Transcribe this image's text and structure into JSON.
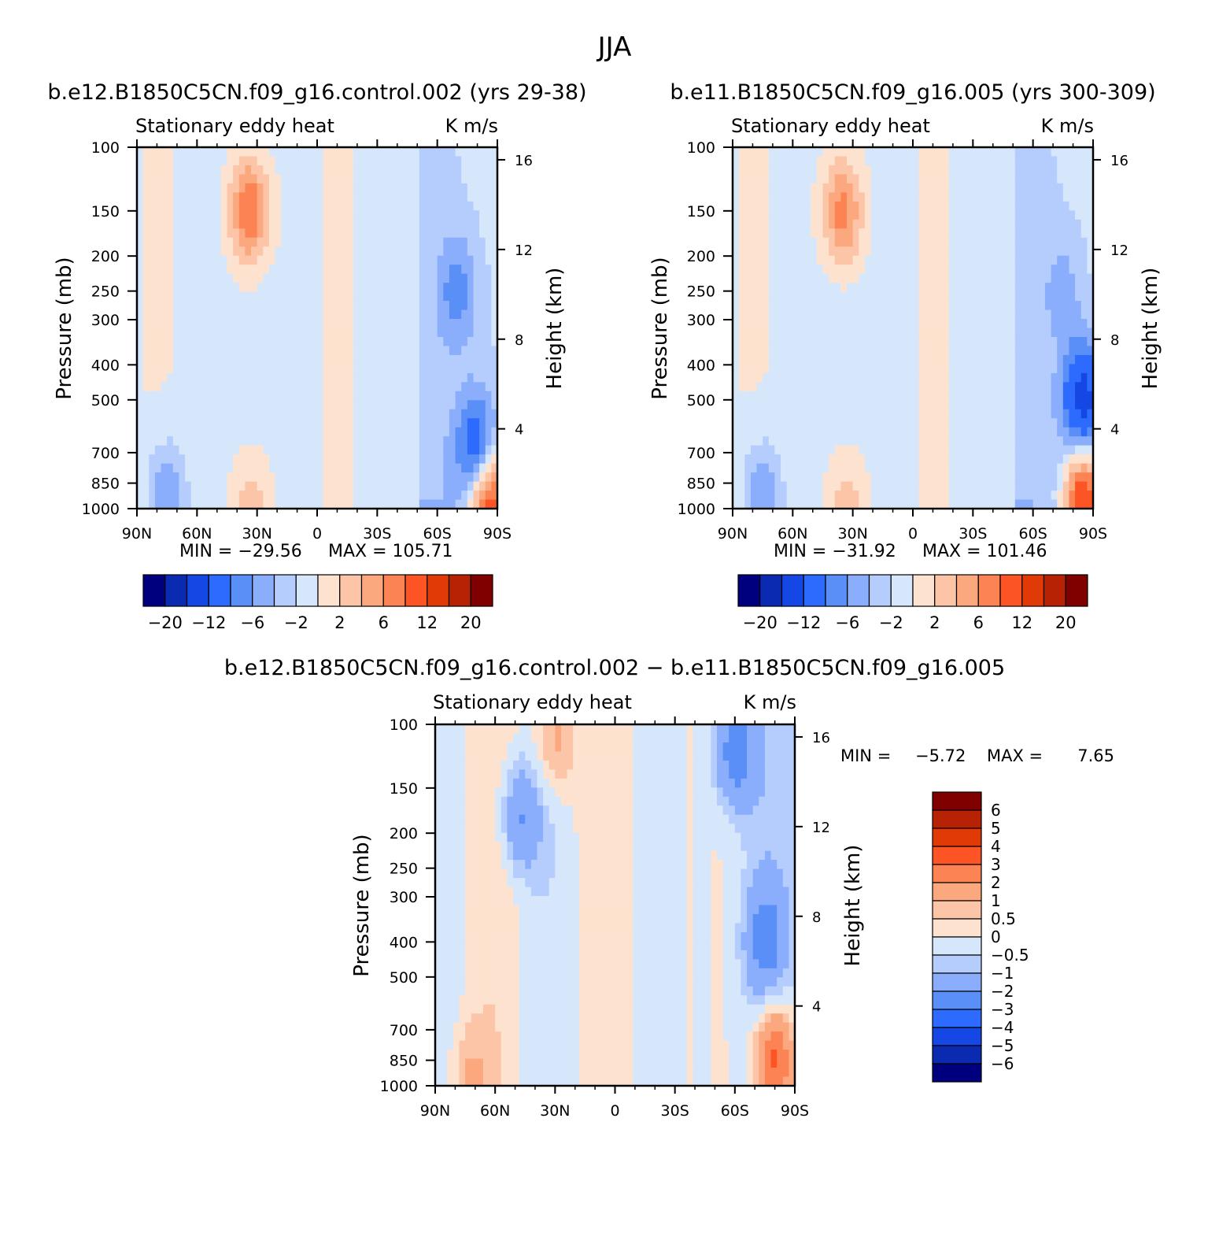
{
  "figure_title": "JJA",
  "chart_data": [
    {
      "type": "heatmap",
      "panel": "control",
      "title": "b.e12.B1850C5CN.f09_g16.control.002 (yrs 29-38)",
      "left_subtitle": "Stationary eddy heat",
      "right_subtitle": "K m/s",
      "ylabel": "Pressure (mb)",
      "ylabel_right": "Height (km)",
      "x_ticks": [
        "90N",
        "60N",
        "30N",
        "0",
        "30S",
        "60S",
        "90S"
      ],
      "y_ticks": [
        "100",
        "150",
        "200",
        "250",
        "300",
        "400",
        "500",
        "700",
        "850",
        "1000"
      ],
      "height_ticks": [
        "16",
        "12",
        "8",
        "4"
      ],
      "xlim": [
        90,
        -90
      ],
      "ylim": [
        1000,
        100
      ],
      "min_label": "MIN = −29.56",
      "max_label": "MAX = 105.71",
      "colorbar_labels": [
        "−20",
        "−12",
        "−6",
        "−2",
        "2",
        "6",
        "12",
        "20"
      ],
      "features": [
        {
          "lat": 34,
          "p": 150,
          "value": 9
        },
        {
          "lat": 33,
          "p": 980,
          "value": 4
        },
        {
          "lat": 75,
          "p": 930,
          "value": -6
        },
        {
          "lat": -70,
          "p": 250,
          "value": -5
        },
        {
          "lat": -80,
          "p": 700,
          "value": -10
        },
        {
          "lat": -85,
          "p": 950,
          "value": 15
        }
      ]
    },
    {
      "type": "heatmap",
      "panel": "experiment",
      "title": "b.e11.B1850C5CN.f09_g16.005 (yrs 300-309)",
      "left_subtitle": "Stationary eddy heat",
      "right_subtitle": "K m/s",
      "ylabel": "Pressure (mb)",
      "ylabel_right": "Height (km)",
      "x_ticks": [
        "90N",
        "60N",
        "30N",
        "0",
        "30S",
        "60S",
        "90S"
      ],
      "y_ticks": [
        "100",
        "150",
        "200",
        "250",
        "300",
        "400",
        "500",
        "700",
        "850",
        "1000"
      ],
      "height_ticks": [
        "16",
        "12",
        "8",
        "4"
      ],
      "xlim": [
        90,
        -90
      ],
      "ylim": [
        1000,
        100
      ],
      "min_label": "MIN = −31.92",
      "max_label": "MAX = 101.46",
      "colorbar_labels": [
        "−20",
        "−12",
        "−6",
        "−2",
        "2",
        "6",
        "12",
        "20"
      ],
      "features": [
        {
          "lat": 35,
          "p": 150,
          "value": 8
        },
        {
          "lat": 33,
          "p": 980,
          "value": 4
        },
        {
          "lat": 75,
          "p": 930,
          "value": -6
        },
        {
          "lat": -75,
          "p": 250,
          "value": -3
        },
        {
          "lat": -85,
          "p": 500,
          "value": -12
        },
        {
          "lat": -85,
          "p": 950,
          "value": 14
        }
      ]
    },
    {
      "type": "heatmap",
      "panel": "difference",
      "title": "b.e12.B1850C5CN.f09_g16.control.002 − b.e11.B1850C5CN.f09_g16.005",
      "left_subtitle": "Stationary eddy heat",
      "right_subtitle": "K m/s",
      "ylabel": "Pressure (mb)",
      "ylabel_right": "Height (km)",
      "x_ticks": [
        "90N",
        "60N",
        "30N",
        "0",
        "30S",
        "60S",
        "90S"
      ],
      "y_ticks": [
        "100",
        "150",
        "200",
        "250",
        "300",
        "400",
        "500",
        "700",
        "850",
        "1000"
      ],
      "height_ticks": [
        "16",
        "12",
        "8",
        "4"
      ],
      "xlim": [
        90,
        -90
      ],
      "ylim": [
        1000,
        100
      ],
      "min_label": "MIN =",
      "min_value": "−5.72",
      "max_label": "MAX =",
      "max_value": "7.65",
      "colorbar_labels": [
        "6",
        "5",
        "4",
        "3",
        "2",
        "1",
        "0.5",
        "0",
        "−0.5",
        "−1",
        "−2",
        "−3",
        "−4",
        "−5",
        "−6"
      ],
      "features": [
        {
          "lat": 47,
          "p": 180,
          "value": -2
        },
        {
          "lat": 30,
          "p": 110,
          "value": 1.5
        },
        {
          "lat": -60,
          "p": 120,
          "value": -2.5
        },
        {
          "lat": -75,
          "p": 400,
          "value": -2
        },
        {
          "lat": -80,
          "p": 850,
          "value": 4
        },
        {
          "lat": 73,
          "p": 950,
          "value": 1
        }
      ]
    }
  ],
  "palette": {
    "cb8": [
      "#00007f",
      "#0a2ab2",
      "#1447e3",
      "#2d6bff",
      "#598ff6",
      "#8aaefb",
      "#b5cdfd",
      "#d6e7fb",
      "#fde3cf",
      "#fdc5a8",
      "#fca87f",
      "#fc8454",
      "#fc5424",
      "#e23a07",
      "#b82204",
      "#800000"
    ],
    "diff": [
      "#00007f",
      "#0a2ab2",
      "#1447e3",
      "#2d6bff",
      "#598ff6",
      "#8aaefb",
      "#b5cdfd",
      "#d6e7fb",
      "#fde3cf",
      "#fdc5a8",
      "#fca87f",
      "#fc8454",
      "#fc5424",
      "#e23a07",
      "#b82204",
      "#800000"
    ]
  }
}
